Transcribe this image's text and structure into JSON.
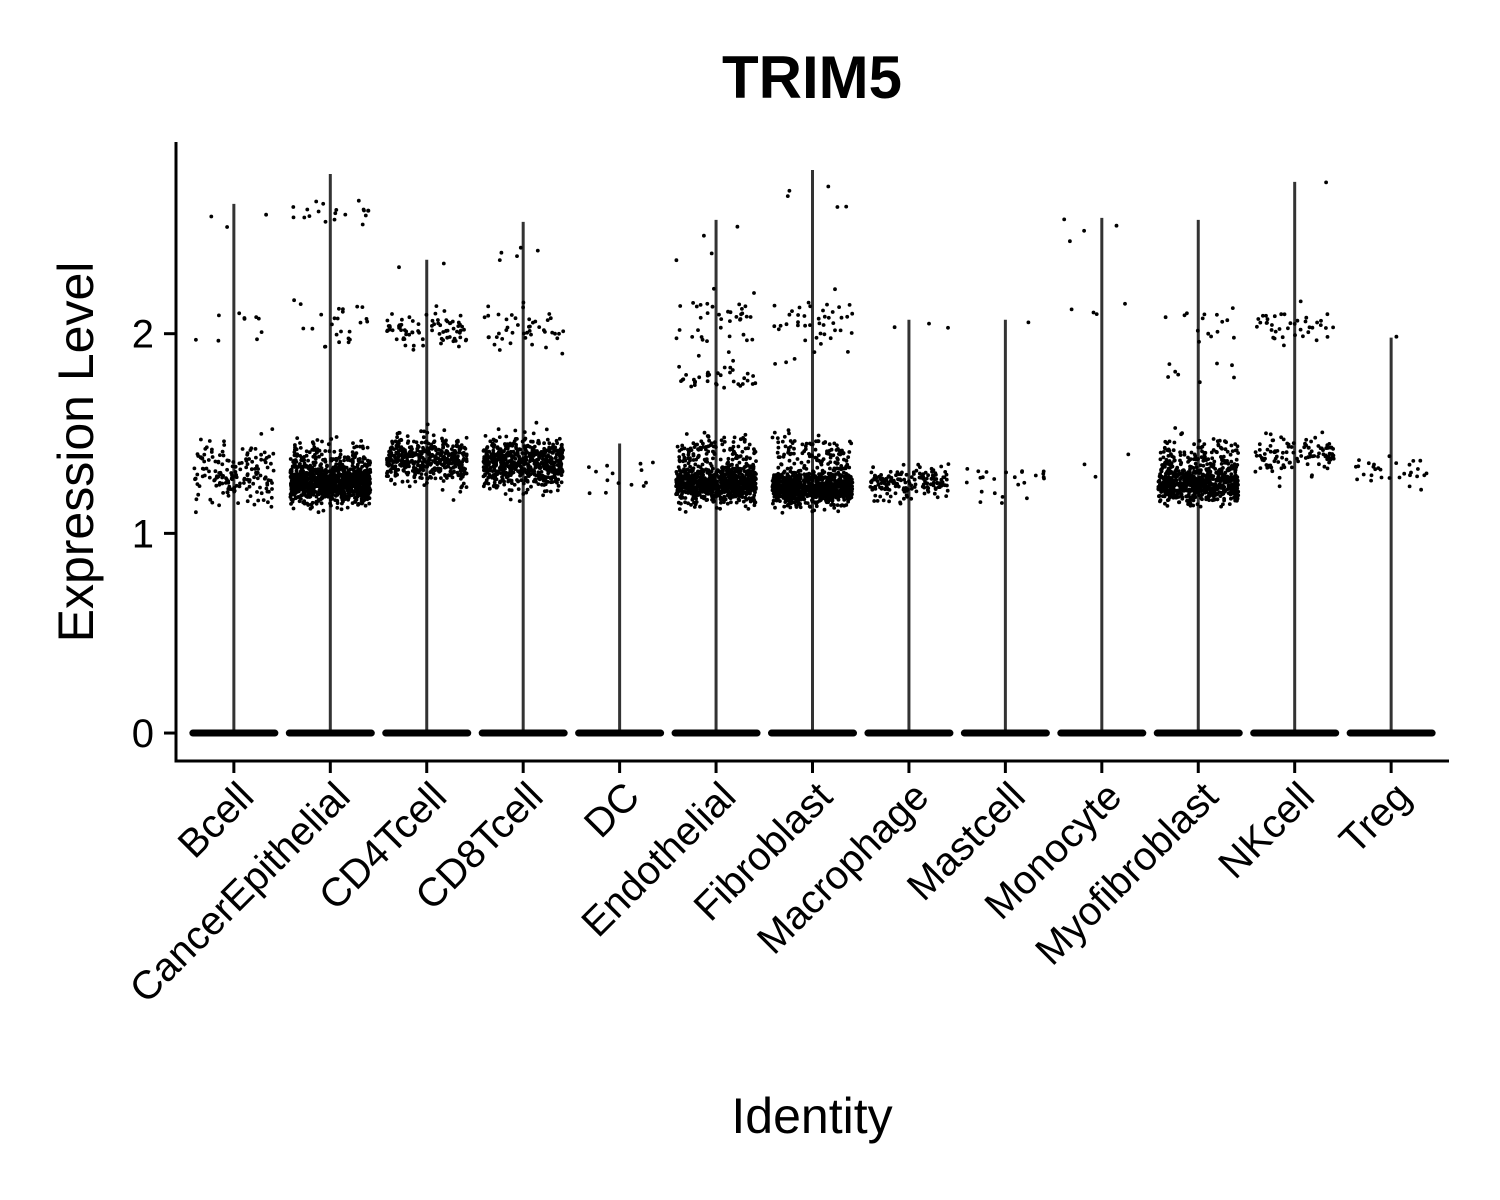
{
  "chart_data": {
    "type": "violin",
    "title": "TRIM5",
    "xlabel": "Identity",
    "ylabel": "Expression Level",
    "ylim": [
      -0.14,
      2.96
    ],
    "yticks": [
      0,
      1,
      2
    ],
    "grid": false,
    "legend": "none",
    "categories": [
      "Bcell",
      "CancerEpithelial",
      "CD4Tcell",
      "CD8Tcell",
      "DC",
      "Endothelial",
      "Fibroblast",
      "Macrophage",
      "Mastcell",
      "Monocyte",
      "Myofibroblast",
      "NKcell",
      "Treg"
    ],
    "max_values": [
      2.65,
      2.8,
      2.37,
      2.56,
      1.45,
      2.57,
      2.82,
      2.07,
      2.07,
      2.58,
      2.57,
      2.76,
      1.98
    ],
    "groups": [
      {
        "name": "Bcell",
        "clusters": [
          {
            "center": 1.3,
            "spread": 0.14,
            "count": 170
          },
          {
            "center": 2.05,
            "spread": 0.12,
            "count": 10
          },
          {
            "center": 2.6,
            "spread": 0.06,
            "count": 3
          }
        ]
      },
      {
        "name": "CancerEpithelial",
        "clusters": [
          {
            "center": 1.25,
            "spread": 0.08,
            "count": 900
          },
          {
            "center": 1.38,
            "spread": 0.08,
            "count": 120
          },
          {
            "center": 2.05,
            "spread": 0.15,
            "count": 25
          },
          {
            "center": 2.6,
            "spread": 0.05,
            "count": 20
          }
        ]
      },
      {
        "name": "CD4Tcell",
        "clusters": [
          {
            "center": 1.37,
            "spread": 0.09,
            "count": 450
          },
          {
            "center": 2.03,
            "spread": 0.07,
            "count": 80
          },
          {
            "center": 2.35,
            "spread": 0.02,
            "count": 2
          }
        ]
      },
      {
        "name": "CD8Tcell",
        "clusters": [
          {
            "center": 1.35,
            "spread": 0.1,
            "count": 600
          },
          {
            "center": 2.03,
            "spread": 0.1,
            "count": 45
          },
          {
            "center": 2.4,
            "spread": 0.03,
            "count": 5
          }
        ]
      },
      {
        "name": "DC",
        "clusters": [
          {
            "center": 1.28,
            "spread": 0.08,
            "count": 14
          }
        ]
      },
      {
        "name": "Endothelial",
        "clusters": [
          {
            "center": 1.25,
            "spread": 0.08,
            "count": 800
          },
          {
            "center": 1.42,
            "spread": 0.06,
            "count": 100
          },
          {
            "center": 1.78,
            "spread": 0.05,
            "count": 35
          },
          {
            "center": 2.05,
            "spread": 0.12,
            "count": 40
          },
          {
            "center": 2.45,
            "spread": 0.1,
            "count": 4
          }
        ]
      },
      {
        "name": "Fibroblast",
        "clusters": [
          {
            "center": 1.23,
            "spread": 0.07,
            "count": 900
          },
          {
            "center": 1.4,
            "spread": 0.07,
            "count": 100
          },
          {
            "center": 2.05,
            "spread": 0.13,
            "count": 45
          },
          {
            "center": 2.7,
            "spread": 0.1,
            "count": 5
          }
        ]
      },
      {
        "name": "Macrophage",
        "clusters": [
          {
            "center": 1.25,
            "spread": 0.07,
            "count": 170
          },
          {
            "center": 2.02,
            "spread": 0.03,
            "count": 3
          }
        ]
      },
      {
        "name": "Mastcell",
        "clusters": [
          {
            "center": 1.25,
            "spread": 0.08,
            "count": 24
          },
          {
            "center": 2.06,
            "spread": 0.01,
            "count": 1
          }
        ]
      },
      {
        "name": "Monocyte",
        "clusters": [
          {
            "center": 1.35,
            "spread": 0.06,
            "count": 3
          },
          {
            "center": 2.1,
            "spread": 0.06,
            "count": 4
          },
          {
            "center": 2.5,
            "spread": 0.1,
            "count": 4
          }
        ]
      },
      {
        "name": "Myofibroblast",
        "clusters": [
          {
            "center": 1.25,
            "spread": 0.08,
            "count": 650
          },
          {
            "center": 1.4,
            "spread": 0.07,
            "count": 100
          },
          {
            "center": 1.8,
            "spread": 0.06,
            "count": 8
          },
          {
            "center": 2.05,
            "spread": 0.1,
            "count": 15
          }
        ]
      },
      {
        "name": "NKcell",
        "clusters": [
          {
            "center": 1.38,
            "spread": 0.08,
            "count": 110
          },
          {
            "center": 2.03,
            "spread": 0.07,
            "count": 40
          },
          {
            "center": 2.75,
            "spread": 0.02,
            "count": 1
          }
        ]
      },
      {
        "name": "Treg",
        "clusters": [
          {
            "center": 1.32,
            "spread": 0.1,
            "count": 30
          },
          {
            "center": 1.98,
            "spread": 0.01,
            "count": 1
          }
        ]
      }
    ]
  }
}
